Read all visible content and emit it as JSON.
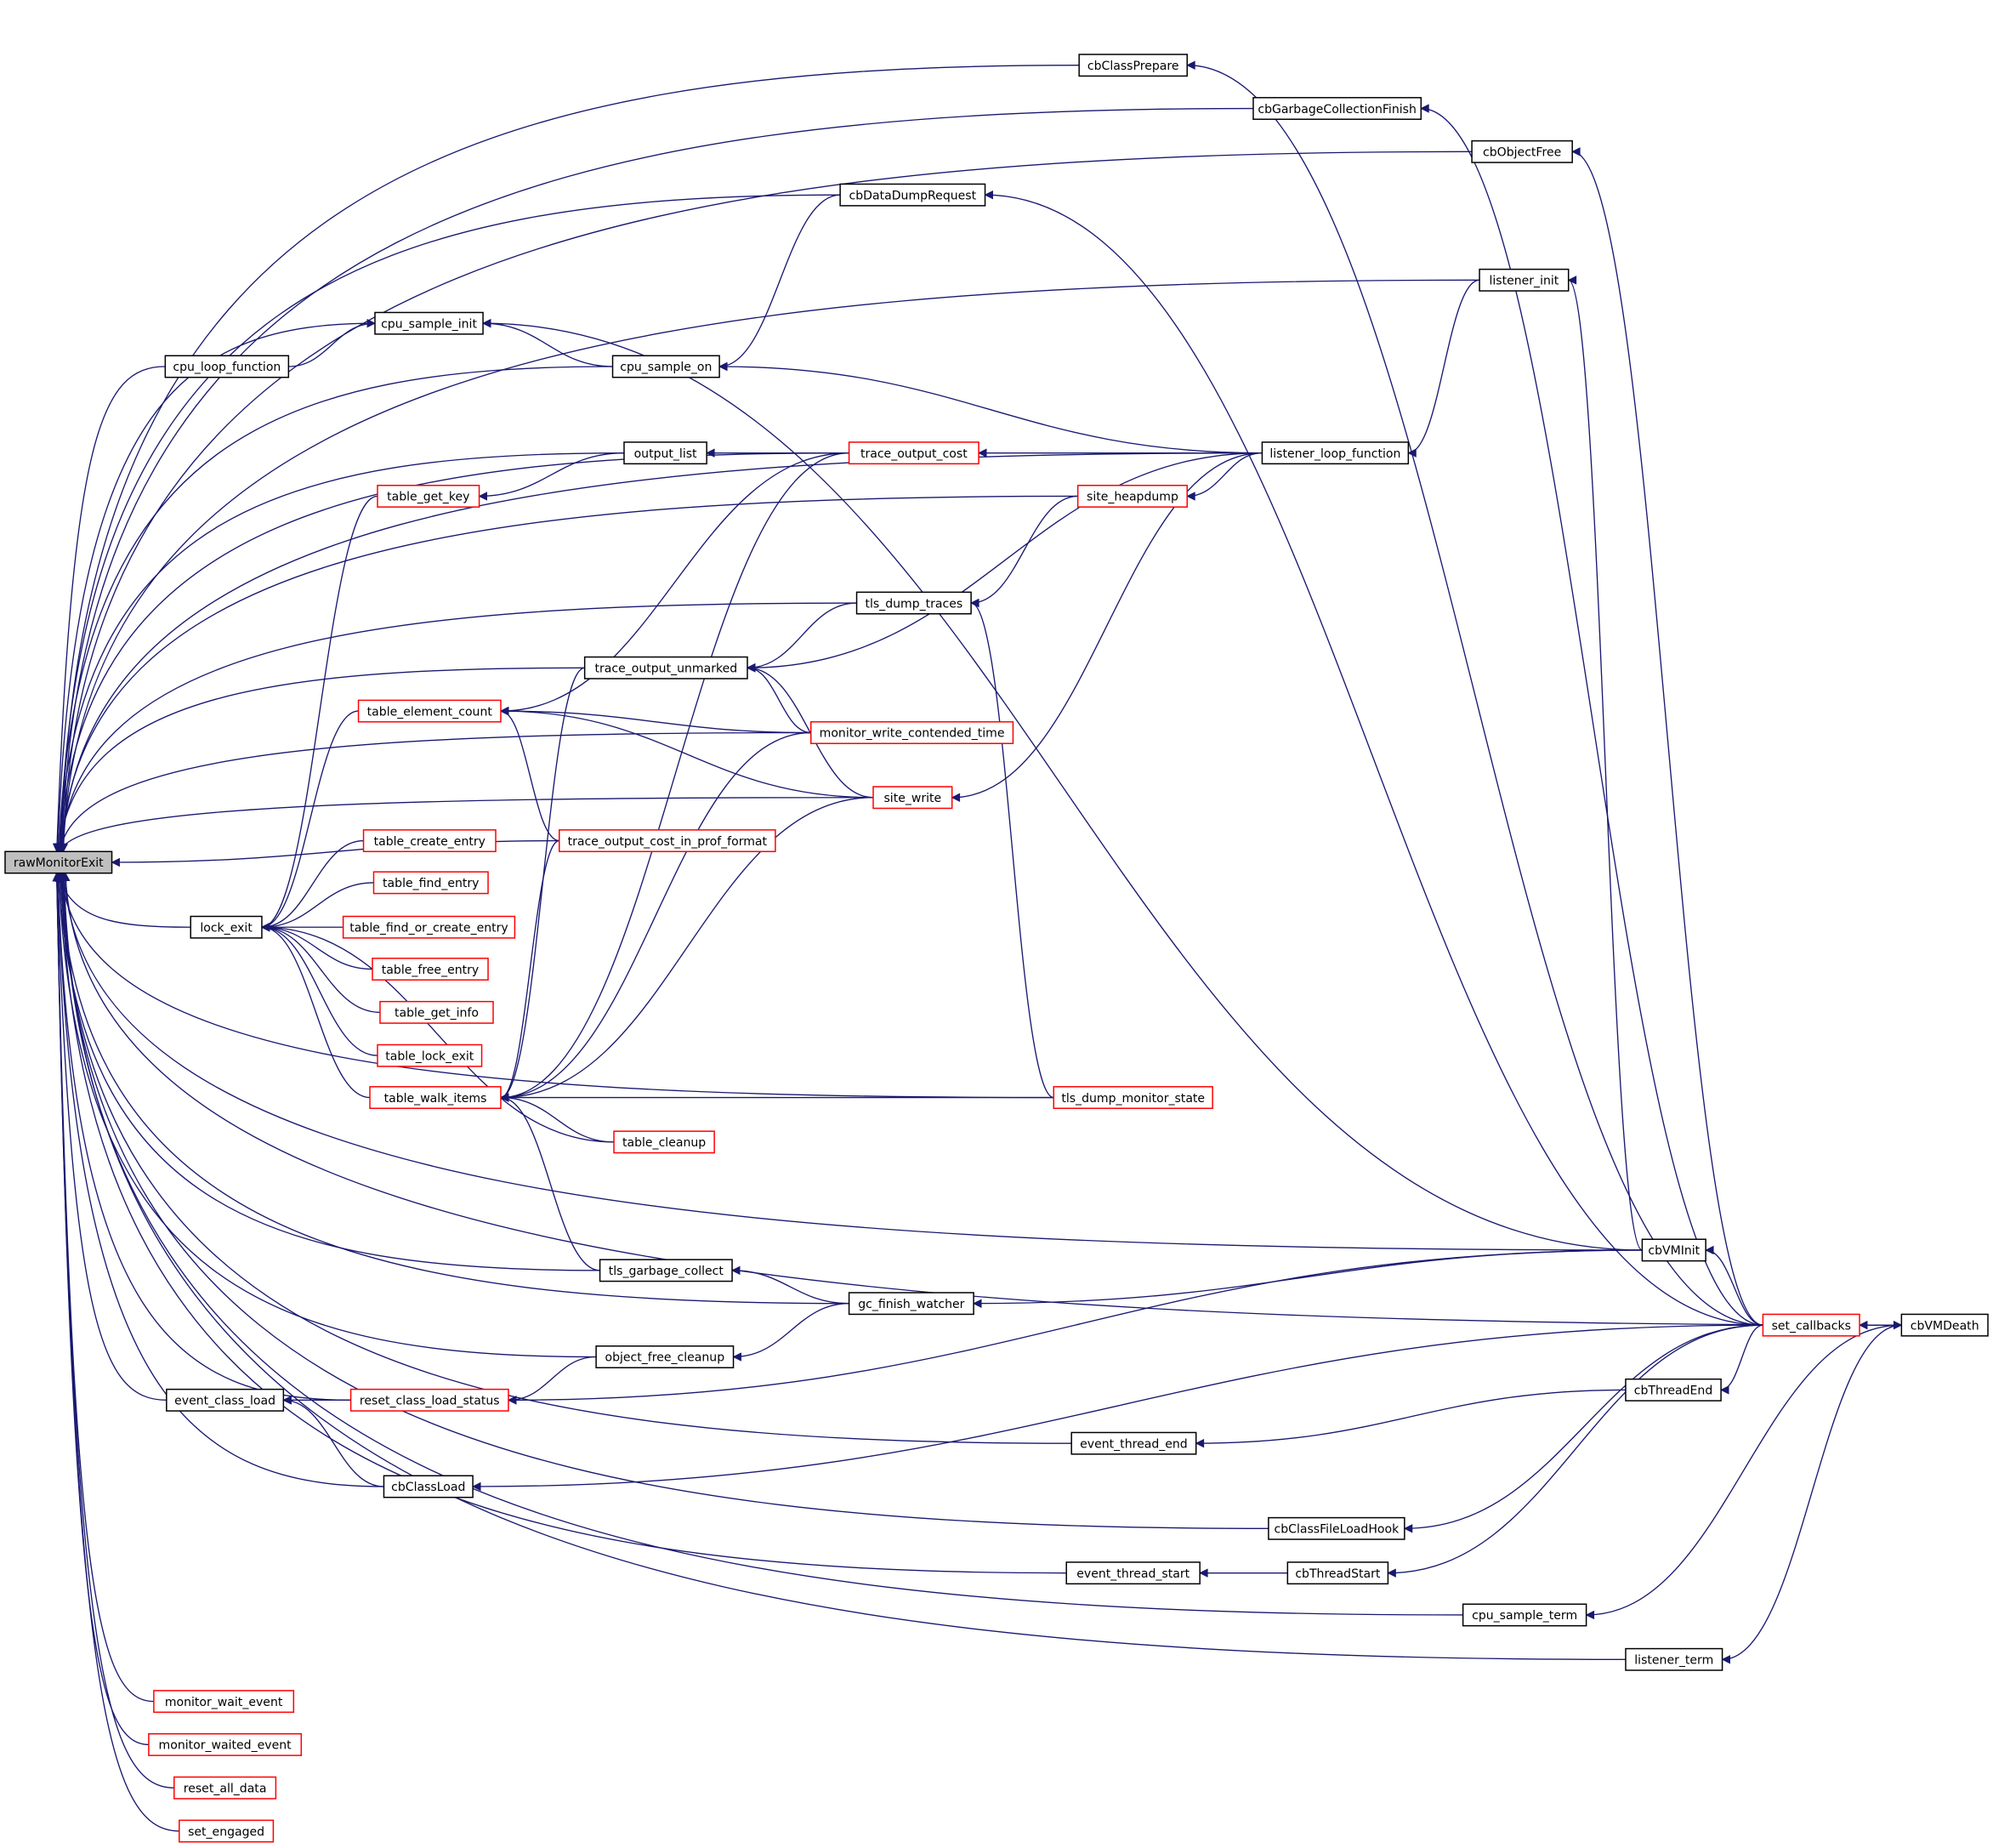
{
  "colors": {
    "edge": "#191970",
    "focus_fill": "#bfbfbf",
    "normal_border": "#000000",
    "truncated_border": "#ff0000"
  },
  "focus_node": "rawMonitorExit",
  "nodes": [
    {
      "label": "rawMonitorExit",
      "style": "focus"
    },
    {
      "label": "cbClassPrepare",
      "style": "normal"
    },
    {
      "label": "cbGarbageCollectionFinish",
      "style": "normal"
    },
    {
      "label": "cbObjectFree",
      "style": "normal"
    },
    {
      "label": "cbDataDumpRequest",
      "style": "normal"
    },
    {
      "label": "listener_init",
      "style": "normal"
    },
    {
      "label": "cpu_sample_init",
      "style": "normal"
    },
    {
      "label": "cpu_loop_function",
      "style": "normal"
    },
    {
      "label": "cpu_sample_on",
      "style": "normal"
    },
    {
      "label": "output_list",
      "style": "normal"
    },
    {
      "label": "trace_output_cost",
      "style": "truncated"
    },
    {
      "label": "listener_loop_function",
      "style": "normal"
    },
    {
      "label": "table_get_key",
      "style": "truncated"
    },
    {
      "label": "site_heapdump",
      "style": "truncated"
    },
    {
      "label": "tls_dump_traces",
      "style": "normal"
    },
    {
      "label": "trace_output_unmarked",
      "style": "normal"
    },
    {
      "label": "table_element_count",
      "style": "truncated"
    },
    {
      "label": "monitor_write_contended_time",
      "style": "truncated"
    },
    {
      "label": "site_write",
      "style": "truncated"
    },
    {
      "label": "trace_output_cost_in_prof_format",
      "style": "truncated"
    },
    {
      "label": "table_create_entry",
      "style": "truncated"
    },
    {
      "label": "table_find_entry",
      "style": "truncated"
    },
    {
      "label": "lock_exit",
      "style": "normal"
    },
    {
      "label": "table_find_or_create_entry",
      "style": "truncated"
    },
    {
      "label": "table_free_entry",
      "style": "truncated"
    },
    {
      "label": "table_get_info",
      "style": "truncated"
    },
    {
      "label": "table_lock_exit",
      "style": "truncated"
    },
    {
      "label": "table_walk_items",
      "style": "truncated"
    },
    {
      "label": "tls_dump_monitor_state",
      "style": "truncated"
    },
    {
      "label": "table_cleanup",
      "style": "truncated"
    },
    {
      "label": "cbVMInit",
      "style": "normal"
    },
    {
      "label": "tls_garbage_collect",
      "style": "normal"
    },
    {
      "label": "gc_finish_watcher",
      "style": "normal"
    },
    {
      "label": "set_callbacks",
      "style": "truncated"
    },
    {
      "label": "cbVMDeath",
      "style": "normal"
    },
    {
      "label": "object_free_cleanup",
      "style": "normal"
    },
    {
      "label": "event_class_load",
      "style": "normal"
    },
    {
      "label": "reset_class_load_status",
      "style": "truncated"
    },
    {
      "label": "cbThreadEnd",
      "style": "normal"
    },
    {
      "label": "event_thread_end",
      "style": "normal"
    },
    {
      "label": "cbClassLoad",
      "style": "normal"
    },
    {
      "label": "cbClassFileLoadHook",
      "style": "normal"
    },
    {
      "label": "event_thread_start",
      "style": "normal"
    },
    {
      "label": "cbThreadStart",
      "style": "normal"
    },
    {
      "label": "cpu_sample_term",
      "style": "normal"
    },
    {
      "label": "listener_term",
      "style": "normal"
    },
    {
      "label": "monitor_wait_event",
      "style": "truncated"
    },
    {
      "label": "monitor_waited_event",
      "style": "truncated"
    },
    {
      "label": "reset_all_data",
      "style": "truncated"
    },
    {
      "label": "set_engaged",
      "style": "truncated"
    }
  ],
  "edges": [
    [
      "cbVMDeath",
      "rawMonitorExit"
    ],
    [
      "cbClassPrepare",
      "rawMonitorExit"
    ],
    [
      "cbGarbageCollectionFinish",
      "rawMonitorExit"
    ],
    [
      "cbObjectFree",
      "rawMonitorExit"
    ],
    [
      "cbDataDumpRequest",
      "rawMonitorExit"
    ],
    [
      "listener_init",
      "rawMonitorExit"
    ],
    [
      "listener_loop_function",
      "rawMonitorExit"
    ],
    [
      "cpu_sample_init",
      "rawMonitorExit"
    ],
    [
      "cpu_loop_function",
      "rawMonitorExit"
    ],
    [
      "cpu_sample_on",
      "rawMonitorExit"
    ],
    [
      "trace_output_cost",
      "rawMonitorExit"
    ],
    [
      "output_list",
      "rawMonitorExit"
    ],
    [
      "site_heapdump",
      "rawMonitorExit"
    ],
    [
      "tls_dump_traces",
      "rawMonitorExit"
    ],
    [
      "trace_output_unmarked",
      "rawMonitorExit"
    ],
    [
      "monitor_write_contended_time",
      "rawMonitorExit"
    ],
    [
      "trace_output_cost_in_prof_format",
      "rawMonitorExit"
    ],
    [
      "site_write",
      "rawMonitorExit"
    ],
    [
      "lock_exit",
      "rawMonitorExit"
    ],
    [
      "tls_dump_monitor_state",
      "rawMonitorExit"
    ],
    [
      "cbVMInit",
      "rawMonitorExit"
    ],
    [
      "tls_garbage_collect",
      "rawMonitorExit"
    ],
    [
      "gc_finish_watcher",
      "rawMonitorExit"
    ],
    [
      "object_free_cleanup",
      "rawMonitorExit"
    ],
    [
      "reset_class_load_status",
      "rawMonitorExit"
    ],
    [
      "event_class_load",
      "rawMonitorExit"
    ],
    [
      "event_thread_end",
      "rawMonitorExit"
    ],
    [
      "cbClassLoad",
      "rawMonitorExit"
    ],
    [
      "cbClassFileLoadHook",
      "rawMonitorExit"
    ],
    [
      "event_thread_start",
      "rawMonitorExit"
    ],
    [
      "cpu_sample_term",
      "rawMonitorExit"
    ],
    [
      "listener_term",
      "rawMonitorExit"
    ],
    [
      "monitor_wait_event",
      "rawMonitorExit"
    ],
    [
      "monitor_waited_event",
      "rawMonitorExit"
    ],
    [
      "reset_all_data",
      "rawMonitorExit"
    ],
    [
      "set_engaged",
      "rawMonitorExit"
    ],
    [
      "set_callbacks",
      "cbClassPrepare"
    ],
    [
      "set_callbacks",
      "cbGarbageCollectionFinish"
    ],
    [
      "set_callbacks",
      "cbObjectFree"
    ],
    [
      "set_callbacks",
      "cbDataDumpRequest"
    ],
    [
      "cbDataDumpRequest",
      "cpu_sample_on"
    ],
    [
      "cbVMInit",
      "listener_init"
    ],
    [
      "listener_init",
      "listener_loop_function"
    ],
    [
      "cpu_loop_function",
      "cpu_sample_init"
    ],
    [
      "cpu_sample_on",
      "cpu_sample_init"
    ],
    [
      "cbVMInit",
      "cpu_sample_init"
    ],
    [
      "listener_loop_function",
      "cpu_sample_on"
    ],
    [
      "trace_output_cost",
      "output_list"
    ],
    [
      "output_list",
      "table_get_key"
    ],
    [
      "listener_loop_function",
      "trace_output_cost"
    ],
    [
      "trace_output_cost",
      "table_element_count"
    ],
    [
      "trace_output_cost",
      "table_walk_items"
    ],
    [
      "listener_loop_function",
      "site_heapdump"
    ],
    [
      "site_heapdump",
      "tls_dump_traces"
    ],
    [
      "tls_dump_traces",
      "trace_output_unmarked"
    ],
    [
      "tls_dump_monitor_state",
      "tls_dump_traces"
    ],
    [
      "listener_loop_function",
      "trace_output_unmarked"
    ],
    [
      "monitor_write_contended_time",
      "trace_output_unmarked"
    ],
    [
      "site_write",
      "trace_output_unmarked"
    ],
    [
      "trace_output_unmarked",
      "table_walk_items"
    ],
    [
      "monitor_write_contended_time",
      "table_element_count"
    ],
    [
      "site_write",
      "table_element_count"
    ],
    [
      "trace_output_cost_in_prof_format",
      "table_element_count"
    ],
    [
      "listener_loop_function",
      "site_write"
    ],
    [
      "table_get_key",
      "lock_exit"
    ],
    [
      "table_element_count",
      "lock_exit"
    ],
    [
      "table_create_entry",
      "lock_exit"
    ],
    [
      "table_find_entry",
      "lock_exit"
    ],
    [
      "table_find_or_create_entry",
      "lock_exit"
    ],
    [
      "table_free_entry",
      "lock_exit"
    ],
    [
      "table_get_info",
      "lock_exit"
    ],
    [
      "table_lock_exit",
      "lock_exit"
    ],
    [
      "table_walk_items",
      "lock_exit"
    ],
    [
      "table_cleanup",
      "lock_exit"
    ],
    [
      "trace_output_cost_in_prof_format",
      "table_walk_items"
    ],
    [
      "monitor_write_contended_time",
      "table_walk_items"
    ],
    [
      "site_write",
      "table_walk_items"
    ],
    [
      "tls_dump_monitor_state",
      "table_walk_items"
    ],
    [
      "table_cleanup",
      "table_walk_items"
    ],
    [
      "tls_garbage_collect",
      "table_walk_items"
    ],
    [
      "gc_finish_watcher",
      "tls_garbage_collect"
    ],
    [
      "cbVMInit",
      "gc_finish_watcher"
    ],
    [
      "gc_finish_watcher",
      "object_free_cleanup"
    ],
    [
      "set_callbacks",
      "cbVMInit"
    ],
    [
      "set_callbacks",
      "cbVMDeath"
    ],
    [
      "cbVMDeath",
      "set_callbacks"
    ],
    [
      "set_callbacks",
      "cbThreadEnd"
    ],
    [
      "cbThreadEnd",
      "event_thread_end"
    ],
    [
      "reset_class_load_status",
      "event_class_load"
    ],
    [
      "cbVMInit",
      "reset_class_load_status"
    ],
    [
      "object_free_cleanup",
      "reset_class_load_status"
    ],
    [
      "cbClassLoad",
      "event_class_load"
    ],
    [
      "set_callbacks",
      "cbClassLoad"
    ],
    [
      "set_callbacks",
      "cbClassFileLoadHook"
    ],
    [
      "cbThreadStart",
      "event_thread_start"
    ],
    [
      "set_callbacks",
      "cbThreadStart"
    ],
    [
      "cbVMDeath",
      "cpu_sample_term"
    ],
    [
      "cbVMDeath",
      "listener_term"
    ]
  ]
}
